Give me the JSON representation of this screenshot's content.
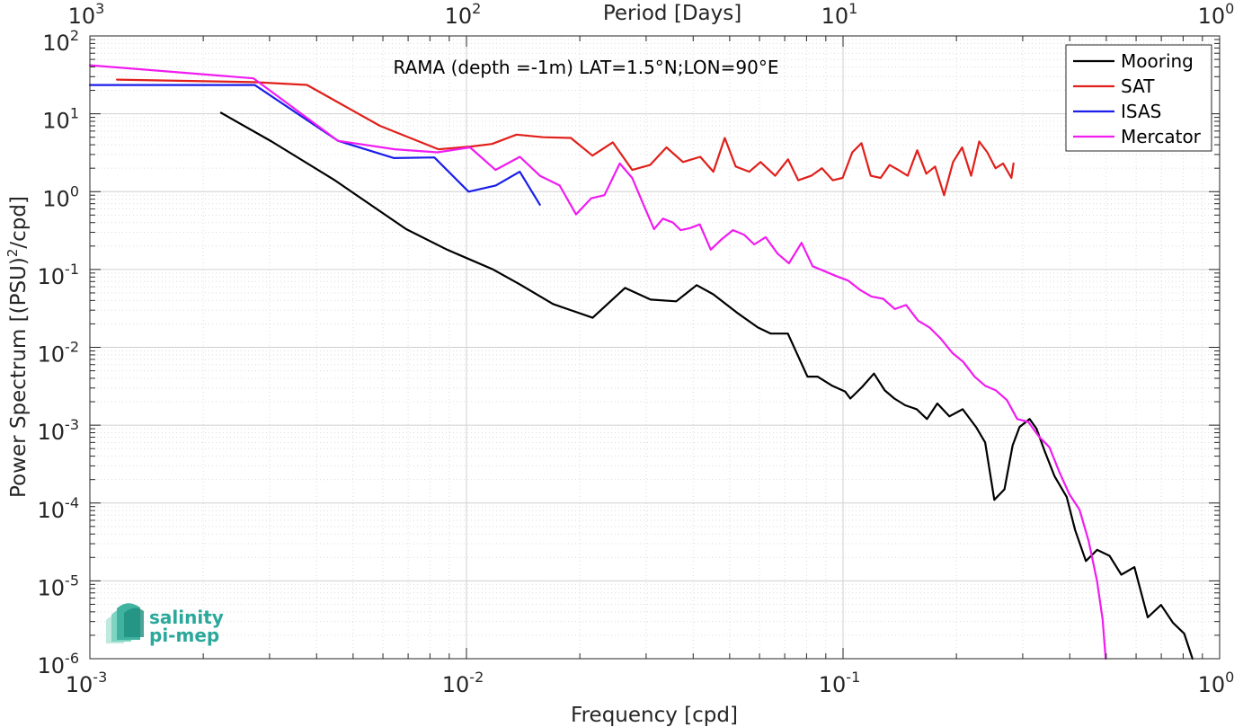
{
  "chart_data": {
    "type": "line",
    "xlabel": "Frequency [cpd]",
    "ylabel": "Power Spectrum [(PSU)",
    "ylabel_exp": "2",
    "ylabel_suffix": "/cpd]",
    "top_xlabel": "Period [Days]",
    "annotation": "RAMA (depth =-1m) LAT=1.5°N;LON=90°E",
    "x_scale": "log",
    "y_scale": "log",
    "xlim": [
      0.001,
      1
    ],
    "ylim": [
      1e-06,
      100
    ],
    "grid": true,
    "legend_position": "top-right",
    "x_ticks": [
      {
        "base": "10",
        "exp": "-3"
      },
      {
        "base": "10",
        "exp": "-2"
      },
      {
        "base": "10",
        "exp": "-1"
      },
      {
        "base": "10",
        "exp": "0"
      }
    ],
    "top_ticks": [
      {
        "base": "10",
        "exp": "3"
      },
      {
        "base": "10",
        "exp": "2"
      },
      {
        "base": "10",
        "exp": "1"
      },
      {
        "base": "10",
        "exp": "0"
      }
    ],
    "y_ticks": [
      {
        "base": "10",
        "exp": "-6"
      },
      {
        "base": "10",
        "exp": "-5"
      },
      {
        "base": "10",
        "exp": "-4"
      },
      {
        "base": "10",
        "exp": "-3"
      },
      {
        "base": "10",
        "exp": "-2"
      },
      {
        "base": "10",
        "exp": "-1"
      },
      {
        "base": "10",
        "exp": "0"
      },
      {
        "base": "10",
        "exp": "1"
      },
      {
        "base": "10",
        "exp": "2"
      }
    ],
    "series": [
      {
        "name": "Mooring",
        "color": "#000000",
        "x": [
          0.00223,
          0.00304,
          0.00447,
          0.00692,
          0.00888,
          0.01177,
          0.01389,
          0.01698,
          0.02163,
          0.02637,
          0.03084,
          0.03607,
          0.04085,
          0.04522,
          0.05223,
          0.05939,
          0.06429,
          0.07135,
          0.08046,
          0.08555,
          0.09374,
          0.10134,
          0.10453,
          0.11238,
          0.12081,
          0.12903,
          0.13684,
          0.14631,
          0.15689,
          0.16708,
          0.17795,
          0.19159,
          0.2078,
          0.22538,
          0.23837,
          0.25211,
          0.26836,
          0.28208,
          0.29434,
          0.31287,
          0.32646,
          0.34395,
          0.36453,
          0.39252,
          0.4132,
          0.44133,
          0.47295,
          0.51013,
          0.54824,
          0.59386,
          0.64419,
          0.69897,
          0.75157,
          0.80536,
          0.84722
        ],
        "y": [
          10.3,
          4.4,
          1.4,
          0.33,
          0.18,
          0.1,
          0.064,
          0.036,
          0.024,
          0.058,
          0.041,
          0.039,
          0.063,
          0.048,
          0.028,
          0.018,
          0.015,
          0.015,
          0.0042,
          0.0042,
          0.0032,
          0.0027,
          0.0022,
          0.0031,
          0.0046,
          0.0028,
          0.0022,
          0.0018,
          0.0016,
          0.0012,
          0.0019,
          0.0013,
          0.0016,
          0.00095,
          0.0006,
          0.00011,
          0.00015,
          0.00055,
          0.00095,
          0.0012,
          0.0009,
          0.00045,
          0.00022,
          0.00012,
          4.5e-05,
          1.8e-05,
          2.5e-05,
          2.1e-05,
          1.2e-05,
          1.5e-05,
          3.4e-06,
          4.9e-06,
          2.9e-06,
          2.1e-06,
          1e-06
        ]
      },
      {
        "name": "SAT",
        "color": "#e0201b",
        "x": [
          0.00118,
          0.00272,
          0.00377,
          0.00589,
          0.00843,
          0.01031,
          0.01169,
          0.01358,
          0.01598,
          0.01893,
          0.02161,
          0.02447,
          0.02757,
          0.03073,
          0.03397,
          0.03758,
          0.04177,
          0.04525,
          0.04852,
          0.05189,
          0.05638,
          0.06039,
          0.06603,
          0.07142,
          0.07605,
          0.08234,
          0.08789,
          0.09392,
          0.09974,
          0.10582,
          0.11195,
          0.11842,
          0.12584,
          0.13288,
          0.14022,
          0.14848,
          0.15733,
          0.16632,
          0.17556,
          0.18549,
          0.19589,
          0.20711,
          0.21879,
          0.22997,
          0.24164,
          0.25405,
          0.26617,
          0.27997,
          0.28356
        ],
        "y": [
          27.5,
          25.5,
          23.5,
          7.0,
          3.5,
          3.8,
          4.1,
          5.4,
          5.0,
          4.9,
          2.9,
          4.3,
          1.9,
          2.2,
          3.7,
          2.4,
          2.8,
          1.8,
          4.9,
          2.1,
          1.8,
          2.4,
          1.6,
          2.6,
          1.4,
          1.6,
          2.0,
          1.4,
          1.5,
          3.2,
          4.2,
          1.6,
          1.5,
          2.2,
          1.9,
          1.6,
          3.4,
          1.7,
          2.1,
          0.9,
          2.4,
          3.7,
          1.6,
          4.4,
          3.2,
          2.0,
          2.3,
          1.5,
          2.3
        ]
      },
      {
        "name": "ISAS",
        "color": "#1a1ee8",
        "x": [
          0.001,
          0.00274,
          0.00456,
          0.00642,
          0.00822,
          0.01013,
          0.01196,
          0.01385,
          0.01567
        ],
        "y": [
          23.4,
          23.4,
          4.5,
          2.7,
          2.75,
          1.0,
          1.2,
          1.8,
          0.68
        ]
      },
      {
        "name": "Mercator",
        "color": "#f01cf0",
        "x": [
          0.001,
          0.00272,
          0.00456,
          0.00645,
          0.00838,
          0.01022,
          0.01194,
          0.01386,
          0.01568,
          0.01768,
          0.01954,
          0.02143,
          0.02324,
          0.02554,
          0.02755,
          0.02926,
          0.03148,
          0.03325,
          0.03535,
          0.03704,
          0.03925,
          0.04164,
          0.04453,
          0.04742,
          0.05101,
          0.05455,
          0.05811,
          0.06231,
          0.06699,
          0.07183,
          0.07758,
          0.08304,
          0.08936,
          0.09601,
          0.10319,
          0.11078,
          0.11893,
          0.12784,
          0.1373,
          0.14699,
          0.15826,
          0.16967,
          0.18153,
          0.19496,
          0.20855,
          0.22349,
          0.23862,
          0.25452,
          0.27225,
          0.29002,
          0.31061,
          0.33081,
          0.35323,
          0.37532,
          0.39903,
          0.42463,
          0.44931,
          0.47287,
          0.48902,
          0.4983
        ],
        "y": [
          42.0,
          28.5,
          4.5,
          3.5,
          3.2,
          3.7,
          1.9,
          2.8,
          1.6,
          1.2,
          0.51,
          0.82,
          0.9,
          2.3,
          1.5,
          0.75,
          0.33,
          0.45,
          0.4,
          0.32,
          0.34,
          0.38,
          0.18,
          0.24,
          0.32,
          0.28,
          0.21,
          0.26,
          0.16,
          0.12,
          0.22,
          0.11,
          0.095,
          0.082,
          0.072,
          0.055,
          0.045,
          0.042,
          0.031,
          0.035,
          0.022,
          0.018,
          0.013,
          0.0085,
          0.0065,
          0.0042,
          0.0032,
          0.0028,
          0.0021,
          0.0012,
          0.0011,
          0.00072,
          0.00052,
          0.00025,
          0.00013,
          8.2e-05,
          3.2e-05,
          9.8e-06,
          3.2e-06,
          1e-06
        ]
      }
    ]
  },
  "logo": {
    "line1": "salinity",
    "line2": "pi-mep"
  }
}
